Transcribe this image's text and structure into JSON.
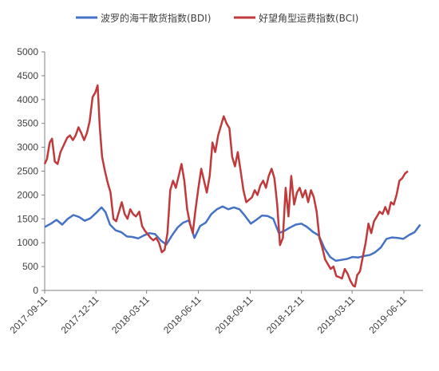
{
  "chart_data": {
    "type": "line",
    "title": "",
    "xlabel": "",
    "ylabel": "",
    "ylim": [
      0,
      5000
    ],
    "yticks": [
      0,
      500,
      1000,
      1500,
      2000,
      2500,
      3000,
      3500,
      4000,
      4500,
      5000
    ],
    "xlim": [
      "2017-09-11",
      "2019-07-15"
    ],
    "xticks": [
      "2017-09-11",
      "2017-12-11",
      "2018-03-11",
      "2018-06-11",
      "2018-09-11",
      "2018-12-11",
      "2019-03-11",
      "2019-06-11"
    ],
    "grid": false,
    "legend_position": "top",
    "series": [
      {
        "name": "波罗的海干散货指数(BDI)",
        "color": "#4472C4",
        "points": [
          [
            "2017-09-11",
            1330
          ],
          [
            "2017-09-22",
            1400
          ],
          [
            "2017-10-02",
            1480
          ],
          [
            "2017-10-12",
            1380
          ],
          [
            "2017-10-22",
            1500
          ],
          [
            "2017-11-01",
            1580
          ],
          [
            "2017-11-11",
            1540
          ],
          [
            "2017-11-21",
            1460
          ],
          [
            "2017-12-01",
            1510
          ],
          [
            "2017-12-11",
            1620
          ],
          [
            "2017-12-21",
            1740
          ],
          [
            "2017-12-28",
            1640
          ],
          [
            "2018-01-05",
            1380
          ],
          [
            "2018-01-15",
            1260
          ],
          [
            "2018-01-25",
            1220
          ],
          [
            "2018-02-04",
            1130
          ],
          [
            "2018-02-14",
            1120
          ],
          [
            "2018-02-24",
            1090
          ],
          [
            "2018-03-06",
            1150
          ],
          [
            "2018-03-16",
            1200
          ],
          [
            "2018-03-26",
            1180
          ],
          [
            "2018-04-05",
            1050
          ],
          [
            "2018-04-15",
            960
          ],
          [
            "2018-04-25",
            1150
          ],
          [
            "2018-05-05",
            1320
          ],
          [
            "2018-05-15",
            1420
          ],
          [
            "2018-05-25",
            1470
          ],
          [
            "2018-06-04",
            1100
          ],
          [
            "2018-06-14",
            1350
          ],
          [
            "2018-06-24",
            1420
          ],
          [
            "2018-07-04",
            1600
          ],
          [
            "2018-07-14",
            1700
          ],
          [
            "2018-07-24",
            1760
          ],
          [
            "2018-08-03",
            1700
          ],
          [
            "2018-08-13",
            1740
          ],
          [
            "2018-08-23",
            1700
          ],
          [
            "2018-09-02",
            1560
          ],
          [
            "2018-09-12",
            1400
          ],
          [
            "2018-09-22",
            1480
          ],
          [
            "2018-10-02",
            1570
          ],
          [
            "2018-10-12",
            1560
          ],
          [
            "2018-10-22",
            1500
          ],
          [
            "2018-11-01",
            1200
          ],
          [
            "2018-11-11",
            1250
          ],
          [
            "2018-11-21",
            1320
          ],
          [
            "2018-12-01",
            1380
          ],
          [
            "2018-12-11",
            1400
          ],
          [
            "2018-12-21",
            1330
          ],
          [
            "2019-01-01",
            1220
          ],
          [
            "2019-01-11",
            1150
          ],
          [
            "2019-01-21",
            880
          ],
          [
            "2019-01-31",
            700
          ],
          [
            "2019-02-10",
            620
          ],
          [
            "2019-02-20",
            640
          ],
          [
            "2019-03-02",
            660
          ],
          [
            "2019-03-12",
            700
          ],
          [
            "2019-03-22",
            690
          ],
          [
            "2019-04-01",
            720
          ],
          [
            "2019-04-11",
            740
          ],
          [
            "2019-04-21",
            800
          ],
          [
            "2019-05-01",
            900
          ],
          [
            "2019-05-11",
            1080
          ],
          [
            "2019-05-21",
            1110
          ],
          [
            "2019-05-31",
            1100
          ],
          [
            "2019-06-10",
            1080
          ],
          [
            "2019-06-20",
            1160
          ],
          [
            "2019-06-30",
            1220
          ],
          [
            "2019-07-10",
            1380
          ]
        ]
      },
      {
        "name": "好望角型运费指数(BCI)",
        "color": "#C0393B",
        "points": [
          [
            "2017-09-11",
            2650
          ],
          [
            "2017-09-15",
            2750
          ],
          [
            "2017-09-20",
            3100
          ],
          [
            "2017-09-24",
            3180
          ],
          [
            "2017-09-29",
            2700
          ],
          [
            "2017-10-04",
            2650
          ],
          [
            "2017-10-09",
            2900
          ],
          [
            "2017-10-15",
            3050
          ],
          [
            "2017-10-21",
            3200
          ],
          [
            "2017-10-26",
            3250
          ],
          [
            "2017-10-31",
            3150
          ],
          [
            "2017-11-05",
            3250
          ],
          [
            "2017-11-10",
            3420
          ],
          [
            "2017-11-15",
            3300
          ],
          [
            "2017-11-20",
            3150
          ],
          [
            "2017-11-25",
            3300
          ],
          [
            "2017-11-30",
            3550
          ],
          [
            "2017-12-05",
            4050
          ],
          [
            "2017-12-10",
            4150
          ],
          [
            "2017-12-14",
            4300
          ],
          [
            "2017-12-18",
            3400
          ],
          [
            "2017-12-22",
            2800
          ],
          [
            "2017-12-27",
            2500
          ],
          [
            "2018-01-01",
            2250
          ],
          [
            "2018-01-06",
            2050
          ],
          [
            "2018-01-11",
            1500
          ],
          [
            "2018-01-16",
            1450
          ],
          [
            "2018-01-21",
            1650
          ],
          [
            "2018-01-26",
            1850
          ],
          [
            "2018-01-31",
            1600
          ],
          [
            "2018-02-05",
            1500
          ],
          [
            "2018-02-10",
            1700
          ],
          [
            "2018-02-15",
            1600
          ],
          [
            "2018-02-20",
            1550
          ],
          [
            "2018-02-26",
            1650
          ],
          [
            "2018-03-03",
            1350
          ],
          [
            "2018-03-08",
            1250
          ],
          [
            "2018-03-13",
            1180
          ],
          [
            "2018-03-18",
            1100
          ],
          [
            "2018-03-23",
            1050
          ],
          [
            "2018-03-28",
            1100
          ],
          [
            "2018-04-02",
            1000
          ],
          [
            "2018-04-07",
            800
          ],
          [
            "2018-04-12",
            850
          ],
          [
            "2018-04-17",
            1200
          ],
          [
            "2018-04-22",
            2100
          ],
          [
            "2018-04-27",
            2300
          ],
          [
            "2018-05-02",
            2150
          ],
          [
            "2018-05-07",
            2400
          ],
          [
            "2018-05-12",
            2650
          ],
          [
            "2018-05-17",
            2300
          ],
          [
            "2018-05-22",
            1700
          ],
          [
            "2018-05-27",
            1400
          ],
          [
            "2018-06-01",
            1200
          ],
          [
            "2018-06-06",
            1700
          ],
          [
            "2018-06-11",
            2150
          ],
          [
            "2018-06-16",
            2550
          ],
          [
            "2018-06-21",
            2300
          ],
          [
            "2018-06-26",
            2050
          ],
          [
            "2018-07-01",
            2400
          ],
          [
            "2018-07-06",
            3100
          ],
          [
            "2018-07-11",
            2900
          ],
          [
            "2018-07-16",
            3250
          ],
          [
            "2018-07-21",
            3450
          ],
          [
            "2018-07-26",
            3650
          ],
          [
            "2018-07-31",
            3500
          ],
          [
            "2018-08-05",
            3400
          ],
          [
            "2018-08-10",
            2800
          ],
          [
            "2018-08-15",
            2600
          ],
          [
            "2018-08-20",
            2900
          ],
          [
            "2018-08-25",
            2500
          ],
          [
            "2018-08-30",
            2100
          ],
          [
            "2018-09-04",
            1850
          ],
          [
            "2018-09-09",
            1900
          ],
          [
            "2018-09-14",
            1950
          ],
          [
            "2018-09-19",
            2100
          ],
          [
            "2018-09-24",
            2000
          ],
          [
            "2018-09-29",
            2200
          ],
          [
            "2018-10-04",
            2300
          ],
          [
            "2018-10-09",
            2150
          ],
          [
            "2018-10-14",
            2400
          ],
          [
            "2018-10-19",
            2550
          ],
          [
            "2018-10-24",
            2350
          ],
          [
            "2018-10-29",
            1800
          ],
          [
            "2018-11-03",
            950
          ],
          [
            "2018-11-08",
            1100
          ],
          [
            "2018-11-13",
            2150
          ],
          [
            "2018-11-18",
            1550
          ],
          [
            "2018-11-23",
            2400
          ],
          [
            "2018-11-28",
            1800
          ],
          [
            "2018-12-03",
            2050
          ],
          [
            "2018-12-08",
            2150
          ],
          [
            "2018-12-13",
            1950
          ],
          [
            "2018-12-18",
            2100
          ],
          [
            "2018-12-23",
            1850
          ],
          [
            "2018-12-28",
            2100
          ],
          [
            "2019-01-02",
            1950
          ],
          [
            "2019-01-07",
            1650
          ],
          [
            "2019-01-12",
            1100
          ],
          [
            "2019-01-17",
            900
          ],
          [
            "2019-01-22",
            650
          ],
          [
            "2019-01-27",
            550
          ],
          [
            "2019-02-01",
            450
          ],
          [
            "2019-02-06",
            500
          ],
          [
            "2019-02-11",
            300
          ],
          [
            "2019-02-16",
            280
          ],
          [
            "2019-02-21",
            250
          ],
          [
            "2019-02-26",
            450
          ],
          [
            "2019-03-03",
            350
          ],
          [
            "2019-03-08",
            200
          ],
          [
            "2019-03-13",
            100
          ],
          [
            "2019-03-16",
            80
          ],
          [
            "2019-03-20",
            320
          ],
          [
            "2019-03-25",
            400
          ],
          [
            "2019-03-30",
            700
          ],
          [
            "2019-04-04",
            1000
          ],
          [
            "2019-04-09",
            1400
          ],
          [
            "2019-04-14",
            1200
          ],
          [
            "2019-04-19",
            1450
          ],
          [
            "2019-04-24",
            1550
          ],
          [
            "2019-04-29",
            1650
          ],
          [
            "2019-05-04",
            1600
          ],
          [
            "2019-05-09",
            1750
          ],
          [
            "2019-05-14",
            1600
          ],
          [
            "2019-05-19",
            1850
          ],
          [
            "2019-05-24",
            1800
          ],
          [
            "2019-05-29",
            2000
          ],
          [
            "2019-06-03",
            2300
          ],
          [
            "2019-06-08",
            2350
          ],
          [
            "2019-06-13",
            2450
          ],
          [
            "2019-06-18",
            2500
          ]
        ]
      }
    ]
  }
}
